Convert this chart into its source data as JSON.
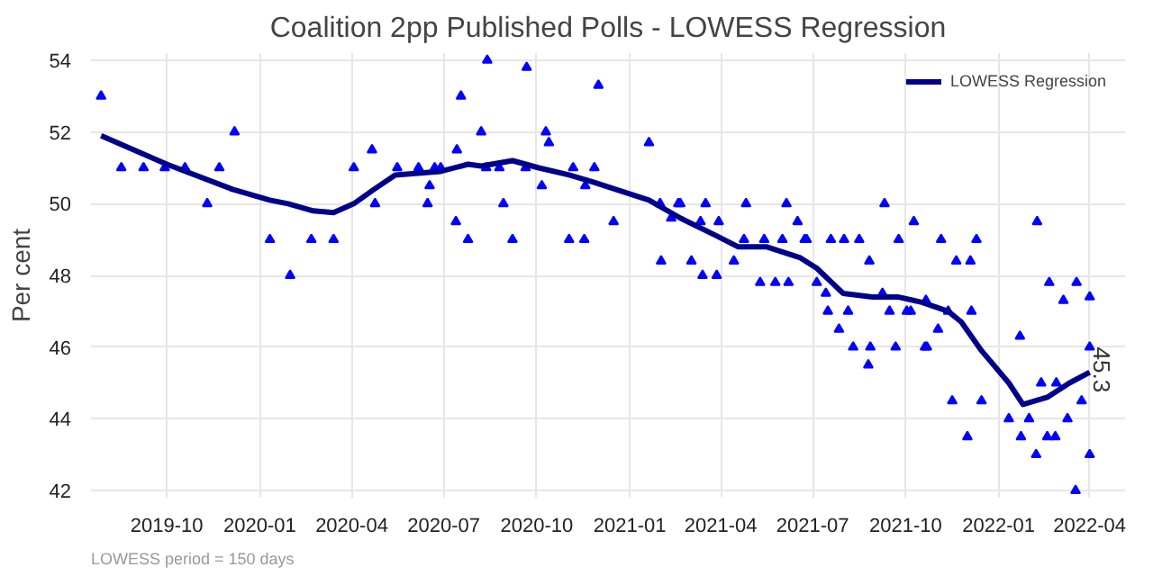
{
  "chart_data": {
    "type": "scatter",
    "title": "Coalition 2pp Published Polls - LOWESS Regression",
    "ylabel": "Per cent",
    "annotations": [
      {
        "text": "45.3",
        "x": "2022-04-01",
        "y": 45.3
      },
      "LOWESS period = 150 days"
    ],
    "xlim": [
      "2019-07-18",
      "2022-05-06"
    ],
    "ylim": [
      41.8,
      54.2
    ],
    "xticks": [
      "2019-10",
      "2020-01",
      "2020-04",
      "2020-07",
      "2020-10",
      "2021-01",
      "2021-04",
      "2021-07",
      "2021-10",
      "2022-01",
      "2022-04"
    ],
    "yticks": [
      42,
      44,
      46,
      48,
      50,
      52,
      54
    ],
    "grid": true,
    "legend": "top right",
    "series": [
      {
        "color": "#0000ff",
        "marker": "triangle",
        "x": [
          "2019-07-28",
          "2019-08-17",
          "2019-09-08",
          "2019-09-29",
          "2019-10-19",
          "2019-11-10",
          "2019-11-22",
          "2019-12-07",
          "2020-01-11",
          "2020-01-31",
          "2020-02-21",
          "2020-03-14",
          "2020-04-03",
          "2020-04-21",
          "2020-04-24",
          "2020-05-16",
          "2020-06-06",
          "2020-06-15",
          "2020-06-17",
          "2020-06-22",
          "2020-06-28",
          "2020-07-13",
          "2020-07-14",
          "2020-07-18",
          "2020-07-25",
          "2020-08-07",
          "2020-08-12",
          "2020-08-13",
          "2020-08-25",
          "2020-08-29",
          "2020-09-07",
          "2020-09-20",
          "2020-09-21",
          "2020-10-06",
          "2020-10-10",
          "2020-10-13",
          "2020-11-02",
          "2020-11-06",
          "2020-11-17",
          "2020-11-18",
          "2020-11-27",
          "2020-12-01",
          "2020-12-16",
          "2021-01-20",
          "2021-01-31",
          "2021-02-01",
          "2021-02-11",
          "2021-02-18",
          "2021-02-20",
          "2021-03-03",
          "2021-03-12",
          "2021-03-14",
          "2021-03-17",
          "2021-03-28",
          "2021-03-30",
          "2021-04-14",
          "2021-04-24",
          "2021-04-26",
          "2021-05-10",
          "2021-05-14",
          "2021-05-25",
          "2021-06-01",
          "2021-06-05",
          "2021-06-07",
          "2021-06-16",
          "2021-06-23",
          "2021-06-25",
          "2021-07-05",
          "2021-07-14",
          "2021-07-16",
          "2021-07-19",
          "2021-07-27",
          "2021-08-01",
          "2021-08-05",
          "2021-08-10",
          "2021-08-16",
          "2021-08-25",
          "2021-08-26",
          "2021-08-27",
          "2021-09-08",
          "2021-09-10",
          "2021-09-15",
          "2021-09-21",
          "2021-09-24",
          "2021-10-02",
          "2021-10-06",
          "2021-10-09",
          "2021-10-20",
          "2021-10-22",
          "2021-10-21",
          "2021-11-02",
          "2021-11-05",
          "2021-11-12",
          "2021-11-16",
          "2021-11-20",
          "2021-12-01",
          "2021-12-04",
          "2021-12-05",
          "2021-12-10",
          "2021-12-15",
          "2022-01-11",
          "2022-01-22",
          "2022-01-23",
          "2022-01-31",
          "2022-02-07",
          "2022-02-08",
          "2022-02-12",
          "2022-02-18",
          "2022-02-20",
          "2022-02-27",
          "2022-02-26",
          "2022-03-06",
          "2022-03-10",
          "2022-03-19",
          "2022-03-18",
          "2022-03-24",
          "2022-04-01",
          "2022-04-01",
          "2022-04-01"
        ],
        "values": [
          53,
          51,
          51,
          51,
          51,
          50,
          51,
          52,
          49,
          48,
          49,
          49,
          51,
          51.5,
          50,
          51,
          51,
          50,
          50.5,
          51,
          51,
          49.5,
          51.5,
          53,
          49,
          52,
          51,
          54,
          51,
          50,
          49,
          51,
          53.8,
          50.5,
          52,
          51.7,
          49,
          51,
          49,
          50.5,
          51,
          53.3,
          49.5,
          51.7,
          50,
          48.4,
          49.6,
          50,
          50,
          48.4,
          49.5,
          48,
          50,
          48,
          49.5,
          48.4,
          49,
          50,
          47.8,
          49,
          47.8,
          49,
          50,
          47.8,
          49.5,
          49,
          49,
          47.8,
          47.5,
          47,
          49,
          46.5,
          49,
          47,
          46,
          49,
          45.5,
          48.4,
          46,
          47.5,
          50,
          47,
          46,
          49,
          47,
          47,
          49.5,
          46,
          46,
          47.3,
          46.5,
          49,
          47,
          44.5,
          48.4,
          43.5,
          48.4,
          47,
          49,
          44.5,
          44,
          46.3,
          43.5,
          44,
          43,
          49.5,
          45,
          43.5,
          47.8,
          45,
          43.5,
          47.3,
          44,
          47.8,
          42,
          44.5,
          47.4,
          46,
          43
        ]
      },
      {
        "type": "line",
        "name": "LOWESS Regression",
        "color": "#00008b",
        "x": [
          "2019-07-28",
          "2019-10-01",
          "2019-12-05",
          "2020-01-11",
          "2020-01-29",
          "2020-02-23",
          "2020-03-14",
          "2020-04-03",
          "2020-04-23",
          "2020-05-14",
          "2020-06-28",
          "2020-07-25",
          "2020-08-07",
          "2020-09-07",
          "2020-10-03",
          "2020-11-02",
          "2020-11-26",
          "2021-01-20",
          "2021-02-20",
          "2021-03-28",
          "2021-04-18",
          "2021-05-16",
          "2021-06-18",
          "2021-07-05",
          "2021-07-31",
          "2021-08-29",
          "2021-09-23",
          "2021-10-17",
          "2021-11-12",
          "2021-11-25",
          "2021-12-15",
          "2022-01-11",
          "2022-01-25",
          "2022-02-18",
          "2022-03-12",
          "2022-04-01"
        ],
        "values": [
          51.9,
          51.1,
          50.4,
          50.1,
          50.0,
          49.8,
          49.75,
          50.0,
          50.4,
          50.8,
          50.9,
          51.1,
          51.05,
          51.2,
          51.0,
          50.8,
          50.6,
          50.1,
          49.6,
          49.1,
          48.8,
          48.8,
          48.5,
          48.2,
          47.5,
          47.4,
          47.4,
          47.25,
          47.0,
          46.7,
          45.9,
          45.0,
          44.4,
          44.6,
          45.0,
          45.3
        ]
      }
    ]
  }
}
